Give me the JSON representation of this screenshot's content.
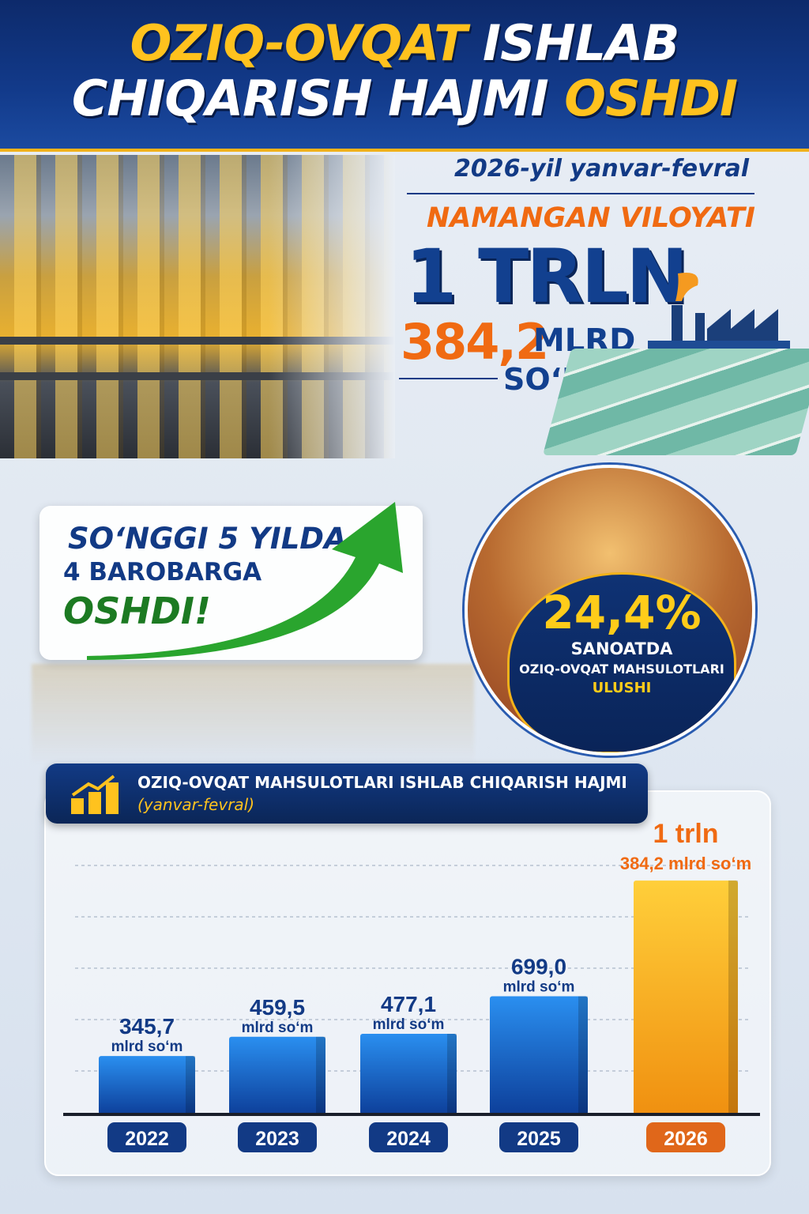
{
  "header": {
    "title_part1": "OZIQ-OVQAT",
    "title_part2": "ISHLAB",
    "title_part3": "CHIQARISH HAJMI",
    "title_part4": "OSHDI"
  },
  "summary": {
    "period": "2026-yil yanvar-fevral",
    "region": "NAMANGAN VILOYATI",
    "amount_big": "1 TRLN",
    "amount_num": "384,2",
    "amount_unit": "MLRD",
    "currency": "SO‘M"
  },
  "growth": {
    "line1": "SO‘NGGI 5 YILDA",
    "line2": "4 BAROBARGA",
    "line3": "OSHDI!"
  },
  "share": {
    "percent": "24,4%",
    "line1": "SANOATDA",
    "line2": "OZIQ-OVQAT MAHSULOTLARI",
    "line3": "ULUSHI"
  },
  "colors": {
    "navy": "#123a85",
    "orange": "#f06a12",
    "gold": "#ffc21e",
    "bar_blue": "#1e6fd0",
    "bar_gold": "#f5a81c",
    "green": "#1c7a22"
  },
  "chart_data": {
    "type": "bar",
    "title": "OZIQ-OVQAT MAHSULOTLARI ISHLAB  CHIQARISH HAJMI",
    "subtitle": "(yanvar-fevral)",
    "categories": [
      "2022",
      "2023",
      "2024",
      "2025",
      "2026"
    ],
    "values": [
      345.7,
      459.5,
      477.1,
      699.0,
      1384.2
    ],
    "unit": "mlrd so‘m",
    "data_labels": [
      {
        "value": "345,7",
        "unit": "mlrd so‘m"
      },
      {
        "value": "459,5",
        "unit": "mlrd so‘m"
      },
      {
        "value": "477,1",
        "unit": "mlrd so‘m"
      },
      {
        "value": "699,0",
        "unit": "mlrd so‘m"
      },
      {
        "value": "1 trln",
        "unit": "384,2 mlrd so‘m"
      }
    ],
    "highlight": "2026",
    "ylim": [
      0,
      1450
    ],
    "grid": true
  }
}
